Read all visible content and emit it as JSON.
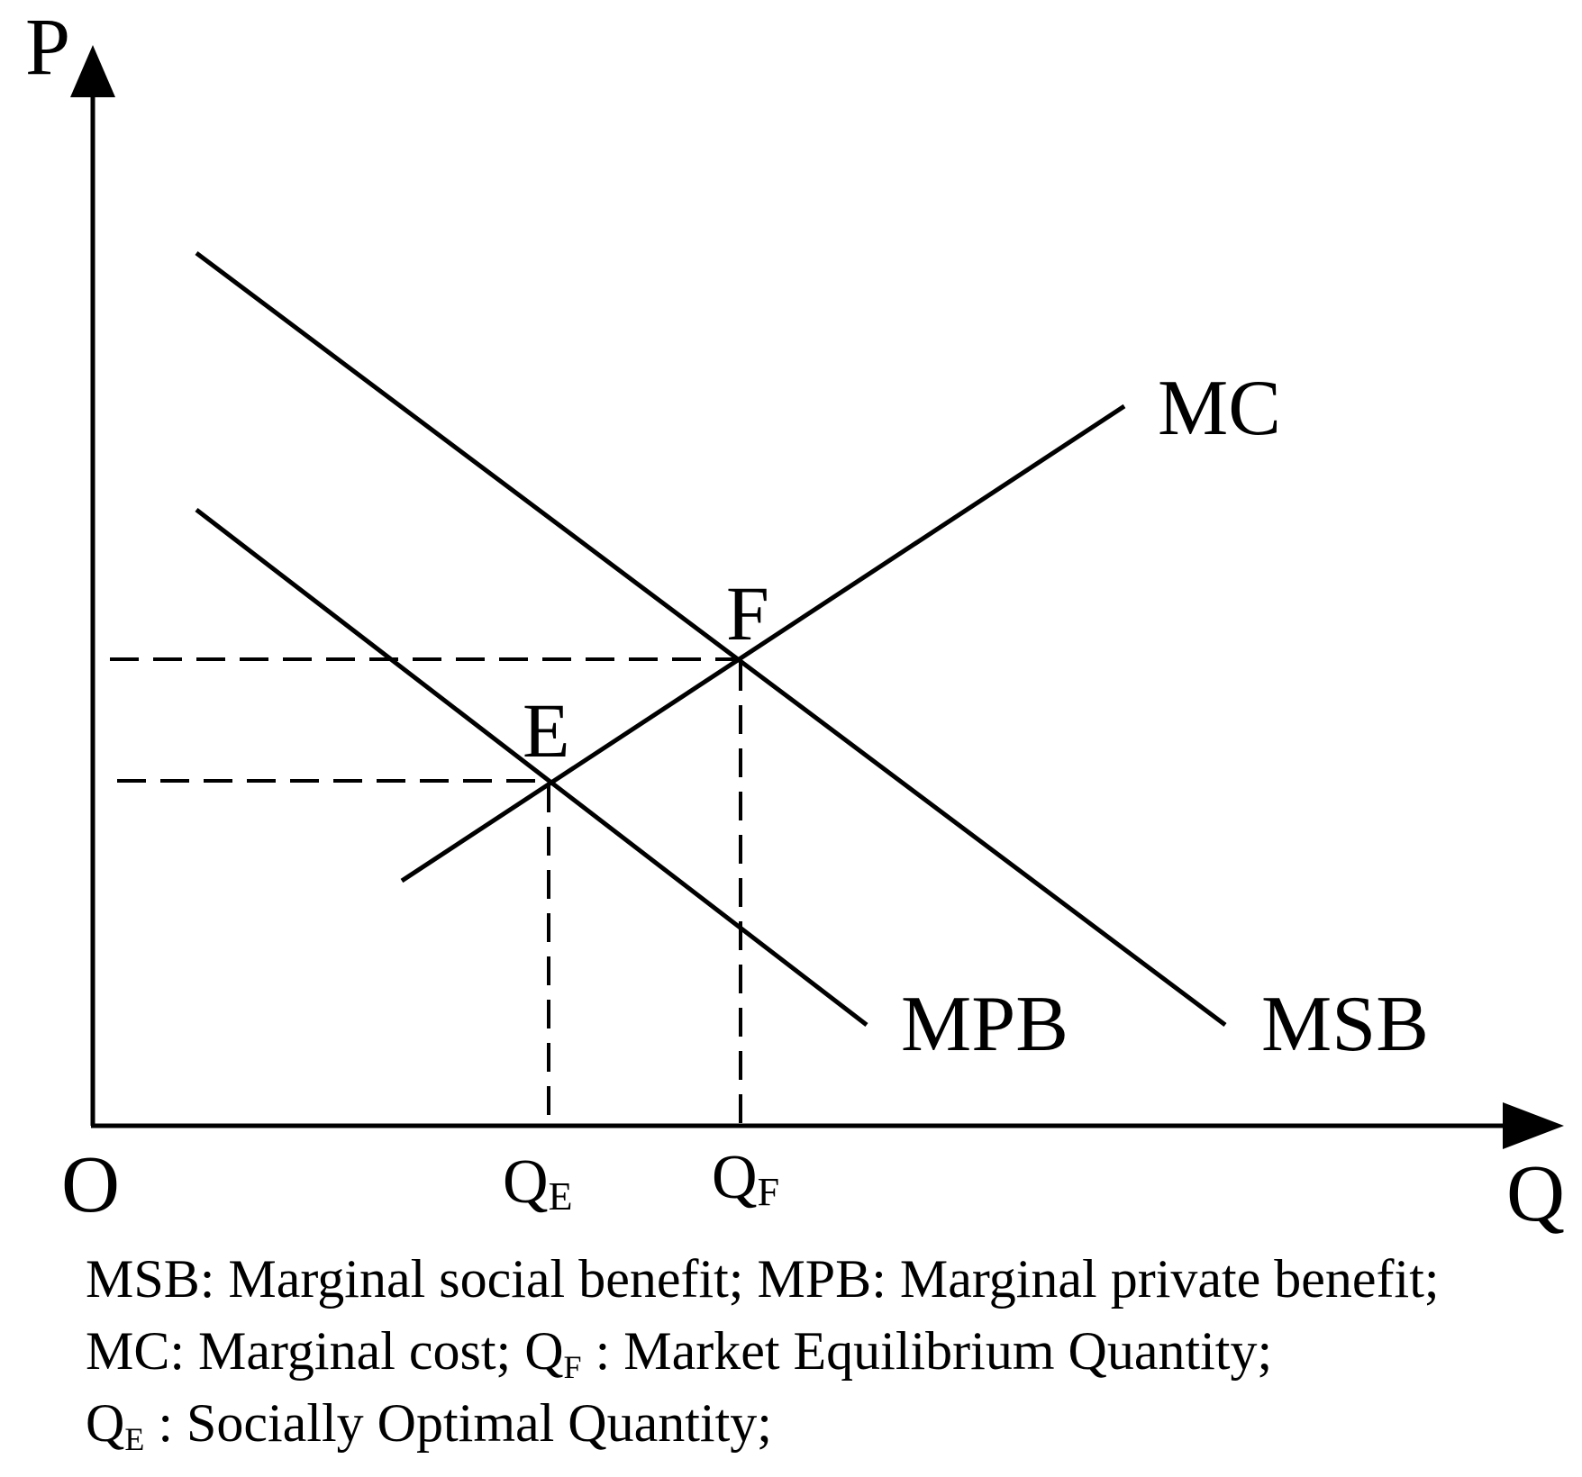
{
  "axes": {
    "y_label": "P",
    "x_label": "Q",
    "origin_label": "O"
  },
  "curves": {
    "mc": "MC",
    "mpb": "MPB",
    "msb": "MSB"
  },
  "points": {
    "e": "E",
    "f": "F"
  },
  "ticks": {
    "qe_main": "Q",
    "qe_sub": "E",
    "qf_main": "Q",
    "qf_sub": "F"
  },
  "legend": {
    "line1": "MSB: Marginal social benefit; MPB: Marginal private benefit;",
    "line2_a": "MC: Marginal cost; Q",
    "line2_sub": "F",
    "line2_b": " : Market Equilibrium Quantity;",
    "line3_a": "Q",
    "line3_sub": "E",
    "line3_b": " : Socially Optimal Quantity;"
  }
}
